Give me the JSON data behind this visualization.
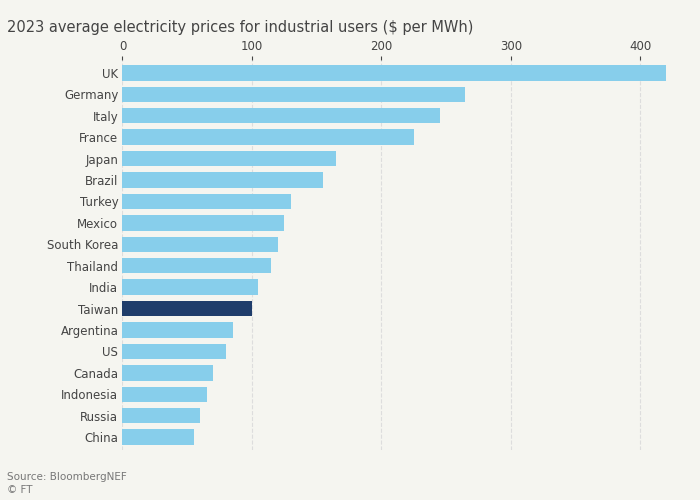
{
  "title": "2023 average electricity prices for industrial users ($ per MWh)",
  "source": "Source: BloombergNEF\n© FT",
  "countries": [
    "UK",
    "Germany",
    "Italy",
    "France",
    "Japan",
    "Brazil",
    "Turkey",
    "Mexico",
    "South Korea",
    "Thailand",
    "India",
    "Taiwan",
    "Argentina",
    "US",
    "Canada",
    "Indonesia",
    "Russia",
    "China"
  ],
  "values": [
    420,
    265,
    245,
    225,
    165,
    155,
    130,
    125,
    120,
    115,
    105,
    100,
    85,
    80,
    70,
    65,
    60,
    55
  ],
  "bar_colors": [
    "#87CEEB",
    "#87CEEB",
    "#87CEEB",
    "#87CEEB",
    "#87CEEB",
    "#87CEEB",
    "#87CEEB",
    "#87CEEB",
    "#87CEEB",
    "#87CEEB",
    "#87CEEB",
    "#1F3D6B",
    "#87CEEB",
    "#87CEEB",
    "#87CEEB",
    "#87CEEB",
    "#87CEEB",
    "#87CEEB"
  ],
  "xlim": [
    0,
    430
  ],
  "xticks": [
    0,
    100,
    200,
    300,
    400
  ],
  "background_color": "#F5F5F0",
  "title_fontsize": 10.5,
  "tick_fontsize": 8.5,
  "label_fontsize": 8.5,
  "grid_color": "#DDDDDD",
  "text_color": "#444444"
}
